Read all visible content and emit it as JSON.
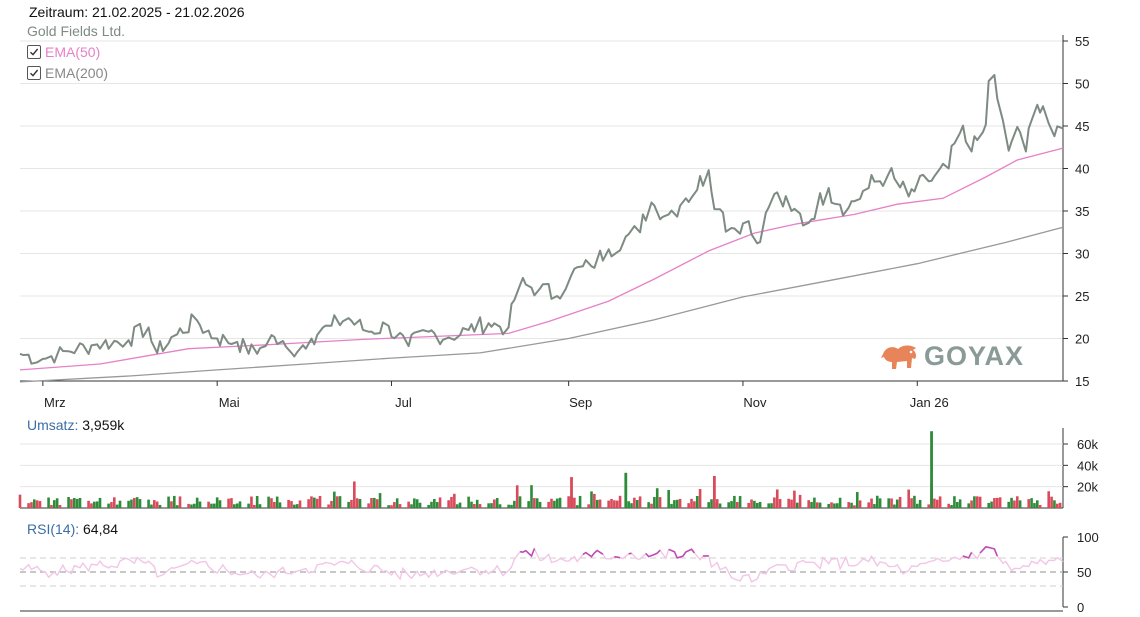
{
  "header": {
    "zeitraum": "Zeitraum: 21.02.2025 - 21.02.2026"
  },
  "legend": {
    "series_name": "Gold Fields Ltd.",
    "ema50_label": "EMA(50)",
    "ema200_label": "EMA(200)"
  },
  "volume": {
    "label": "Umsatz:",
    "value": "3,959k"
  },
  "rsi": {
    "label": "RSI(14):",
    "value": "64,84"
  },
  "logo": {
    "text": "GOYAX"
  },
  "colors": {
    "price": "#7d8b82",
    "ema50": "#e681c8",
    "ema200": "#999999",
    "vol_up": "#2e8b3a",
    "vol_down": "#d94a5a",
    "rsi": "#f2c6e6",
    "rsi_high": "#c04bb4",
    "grid": "#e6e6e6"
  },
  "chart_data": {
    "type": "line",
    "x_range": [
      "2025-02-21",
      "2026-02-21"
    ],
    "x_ticks": [
      {
        "label": "Mrz",
        "date": "2025-03-01"
      },
      {
        "label": "Mai",
        "date": "2025-05-01"
      },
      {
        "label": "Jul",
        "date": "2025-07-01"
      },
      {
        "label": "Sep",
        "date": "2025-09-01"
      },
      {
        "label": "Nov",
        "date": "2025-11-01"
      },
      {
        "label": "Jan 26",
        "date": "2026-01-01"
      }
    ],
    "price_panel": {
      "y_ticks": [
        15,
        20,
        25,
        30,
        35,
        40,
        45,
        50,
        55
      ],
      "ylim": [
        15,
        55
      ],
      "grid": true,
      "price": [
        [
          "2025-02-21",
          18.2
        ],
        [
          "2025-03-01",
          17.6
        ],
        [
          "2025-03-10",
          18.5
        ],
        [
          "2025-03-20",
          19.3
        ],
        [
          "2025-03-31",
          19.8
        ],
        [
          "2025-04-07",
          21.3
        ],
        [
          "2025-04-10",
          18.3
        ],
        [
          "2025-04-17",
          20.5
        ],
        [
          "2025-04-24",
          22.1
        ],
        [
          "2025-05-01",
          20.0
        ],
        [
          "2025-05-08",
          19.6
        ],
        [
          "2025-05-15",
          18.2
        ],
        [
          "2025-05-20",
          20.4
        ],
        [
          "2025-05-27",
          18.3
        ],
        [
          "2025-06-03",
          20.0
        ],
        [
          "2025-06-10",
          21.5
        ],
        [
          "2025-06-16",
          22.4
        ],
        [
          "2025-06-23",
          20.8
        ],
        [
          "2025-06-30",
          21.5
        ],
        [
          "2025-07-07",
          19.1
        ],
        [
          "2025-07-14",
          20.8
        ],
        [
          "2025-07-21",
          20.1
        ],
        [
          "2025-07-28",
          21.0
        ],
        [
          "2025-08-04",
          21.8
        ],
        [
          "2025-08-11",
          21.3
        ],
        [
          "2025-08-15",
          26.3
        ],
        [
          "2025-08-22",
          25.9
        ],
        [
          "2025-08-28",
          25.0
        ],
        [
          "2025-09-02",
          27.5
        ],
        [
          "2025-09-09",
          28.5
        ],
        [
          "2025-09-15",
          30.5
        ],
        [
          "2025-09-21",
          32.0
        ],
        [
          "2025-09-26",
          32.5
        ],
        [
          "2025-09-30",
          36.0
        ],
        [
          "2025-10-06",
          34.6
        ],
        [
          "2025-10-12",
          36.5
        ],
        [
          "2025-10-16",
          37.5
        ],
        [
          "2025-10-20",
          39.8
        ],
        [
          "2025-10-24",
          35.2
        ],
        [
          "2025-10-28",
          33.0
        ],
        [
          "2025-11-03",
          33.8
        ],
        [
          "2025-11-06",
          31.2
        ],
        [
          "2025-11-12",
          37.0
        ],
        [
          "2025-11-18",
          35.0
        ],
        [
          "2025-11-24",
          33.6
        ],
        [
          "2025-12-01",
          37.7
        ],
        [
          "2025-12-08",
          35.4
        ],
        [
          "2025-12-15",
          37.7
        ],
        [
          "2025-12-22",
          39.4
        ],
        [
          "2025-12-29",
          36.7
        ],
        [
          "2026-01-05",
          38.5
        ],
        [
          "2026-01-12",
          40.0
        ],
        [
          "2026-01-16",
          44.2
        ],
        [
          "2026-01-20",
          42.0
        ],
        [
          "2026-01-24",
          44.3
        ],
        [
          "2026-01-28",
          51.0
        ],
        [
          "2026-02-02",
          42.1
        ],
        [
          "2026-02-05",
          44.9
        ],
        [
          "2026-02-08",
          42.0
        ],
        [
          "2026-02-12",
          47.5
        ],
        [
          "2026-02-16",
          45.3
        ],
        [
          "2026-02-18",
          43.8
        ],
        [
          "2026-02-21",
          44.7
        ]
      ],
      "ema50": [
        [
          "2025-02-21",
          16.3
        ],
        [
          "2025-03-21",
          17.0
        ],
        [
          "2025-04-21",
          18.8
        ],
        [
          "2025-05-21",
          19.3
        ],
        [
          "2025-06-21",
          19.9
        ],
        [
          "2025-07-21",
          20.3
        ],
        [
          "2025-08-11",
          20.6
        ],
        [
          "2025-08-25",
          22.0
        ],
        [
          "2025-09-15",
          24.4
        ],
        [
          "2025-10-01",
          27.0
        ],
        [
          "2025-10-20",
          30.3
        ],
        [
          "2025-11-05",
          32.4
        ],
        [
          "2025-11-20",
          33.5
        ],
        [
          "2025-12-10",
          34.6
        ],
        [
          "2025-12-25",
          35.8
        ],
        [
          "2026-01-10",
          36.5
        ],
        [
          "2026-01-25",
          39.0
        ],
        [
          "2026-02-05",
          41.0
        ],
        [
          "2026-02-21",
          42.4
        ]
      ],
      "ema200": [
        [
          "2025-02-21",
          14.9
        ],
        [
          "2025-04-01",
          15.6
        ],
        [
          "2025-05-01",
          16.3
        ],
        [
          "2025-06-01",
          17.0
        ],
        [
          "2025-07-01",
          17.7
        ],
        [
          "2025-08-01",
          18.3
        ],
        [
          "2025-09-01",
          20.0
        ],
        [
          "2025-10-01",
          22.2
        ],
        [
          "2025-11-01",
          24.9
        ],
        [
          "2025-12-01",
          26.8
        ],
        [
          "2026-01-01",
          28.8
        ],
        [
          "2026-02-01",
          31.3
        ],
        [
          "2026-02-21",
          33.1
        ]
      ]
    },
    "volume_panel": {
      "y_ticks": [
        {
          "label": "20k",
          "value": 20000
        },
        {
          "label": "40k",
          "value": 40000
        },
        {
          "label": "60k",
          "value": 60000
        }
      ],
      "ylim": [
        0,
        75000
      ],
      "notable_bars": [
        {
          "date": "2026-01-06",
          "value": 72000,
          "direction": "up"
        },
        {
          "date": "2025-09-21",
          "value": 33000,
          "direction": "up"
        },
        {
          "date": "2025-10-22",
          "value": 30000,
          "direction": "down"
        },
        {
          "date": "2025-09-02",
          "value": 29000,
          "direction": "down"
        }
      ]
    },
    "rsi_panel": {
      "y_ticks": [
        0,
        50,
        100
      ],
      "ylim": [
        0,
        100
      ],
      "levels": [
        30,
        50,
        70
      ],
      "rsi": [
        [
          "2025-02-21",
          55
        ],
        [
          "2025-03-05",
          50
        ],
        [
          "2025-03-20",
          60
        ],
        [
          "2025-04-05",
          64
        ],
        [
          "2025-04-12",
          46
        ],
        [
          "2025-04-24",
          62
        ],
        [
          "2025-05-15",
          44
        ],
        [
          "2025-06-01",
          55
        ],
        [
          "2025-06-16",
          62
        ],
        [
          "2025-07-07",
          45
        ],
        [
          "2025-07-28",
          55
        ],
        [
          "2025-08-11",
          52
        ],
        [
          "2025-08-15",
          79
        ],
        [
          "2025-08-28",
          66
        ],
        [
          "2025-09-09",
          72
        ],
        [
          "2025-09-22",
          76
        ],
        [
          "2025-10-01",
          75
        ],
        [
          "2025-10-20",
          73
        ],
        [
          "2025-10-28",
          42
        ],
        [
          "2025-11-06",
          40
        ],
        [
          "2025-11-15",
          60
        ],
        [
          "2025-12-01",
          62
        ],
        [
          "2025-12-15",
          65
        ],
        [
          "2025-12-29",
          52
        ],
        [
          "2026-01-12",
          66
        ],
        [
          "2026-01-28",
          83
        ],
        [
          "2026-02-03",
          52
        ],
        [
          "2026-02-12",
          62
        ],
        [
          "2026-02-21",
          64.84
        ]
      ]
    }
  }
}
